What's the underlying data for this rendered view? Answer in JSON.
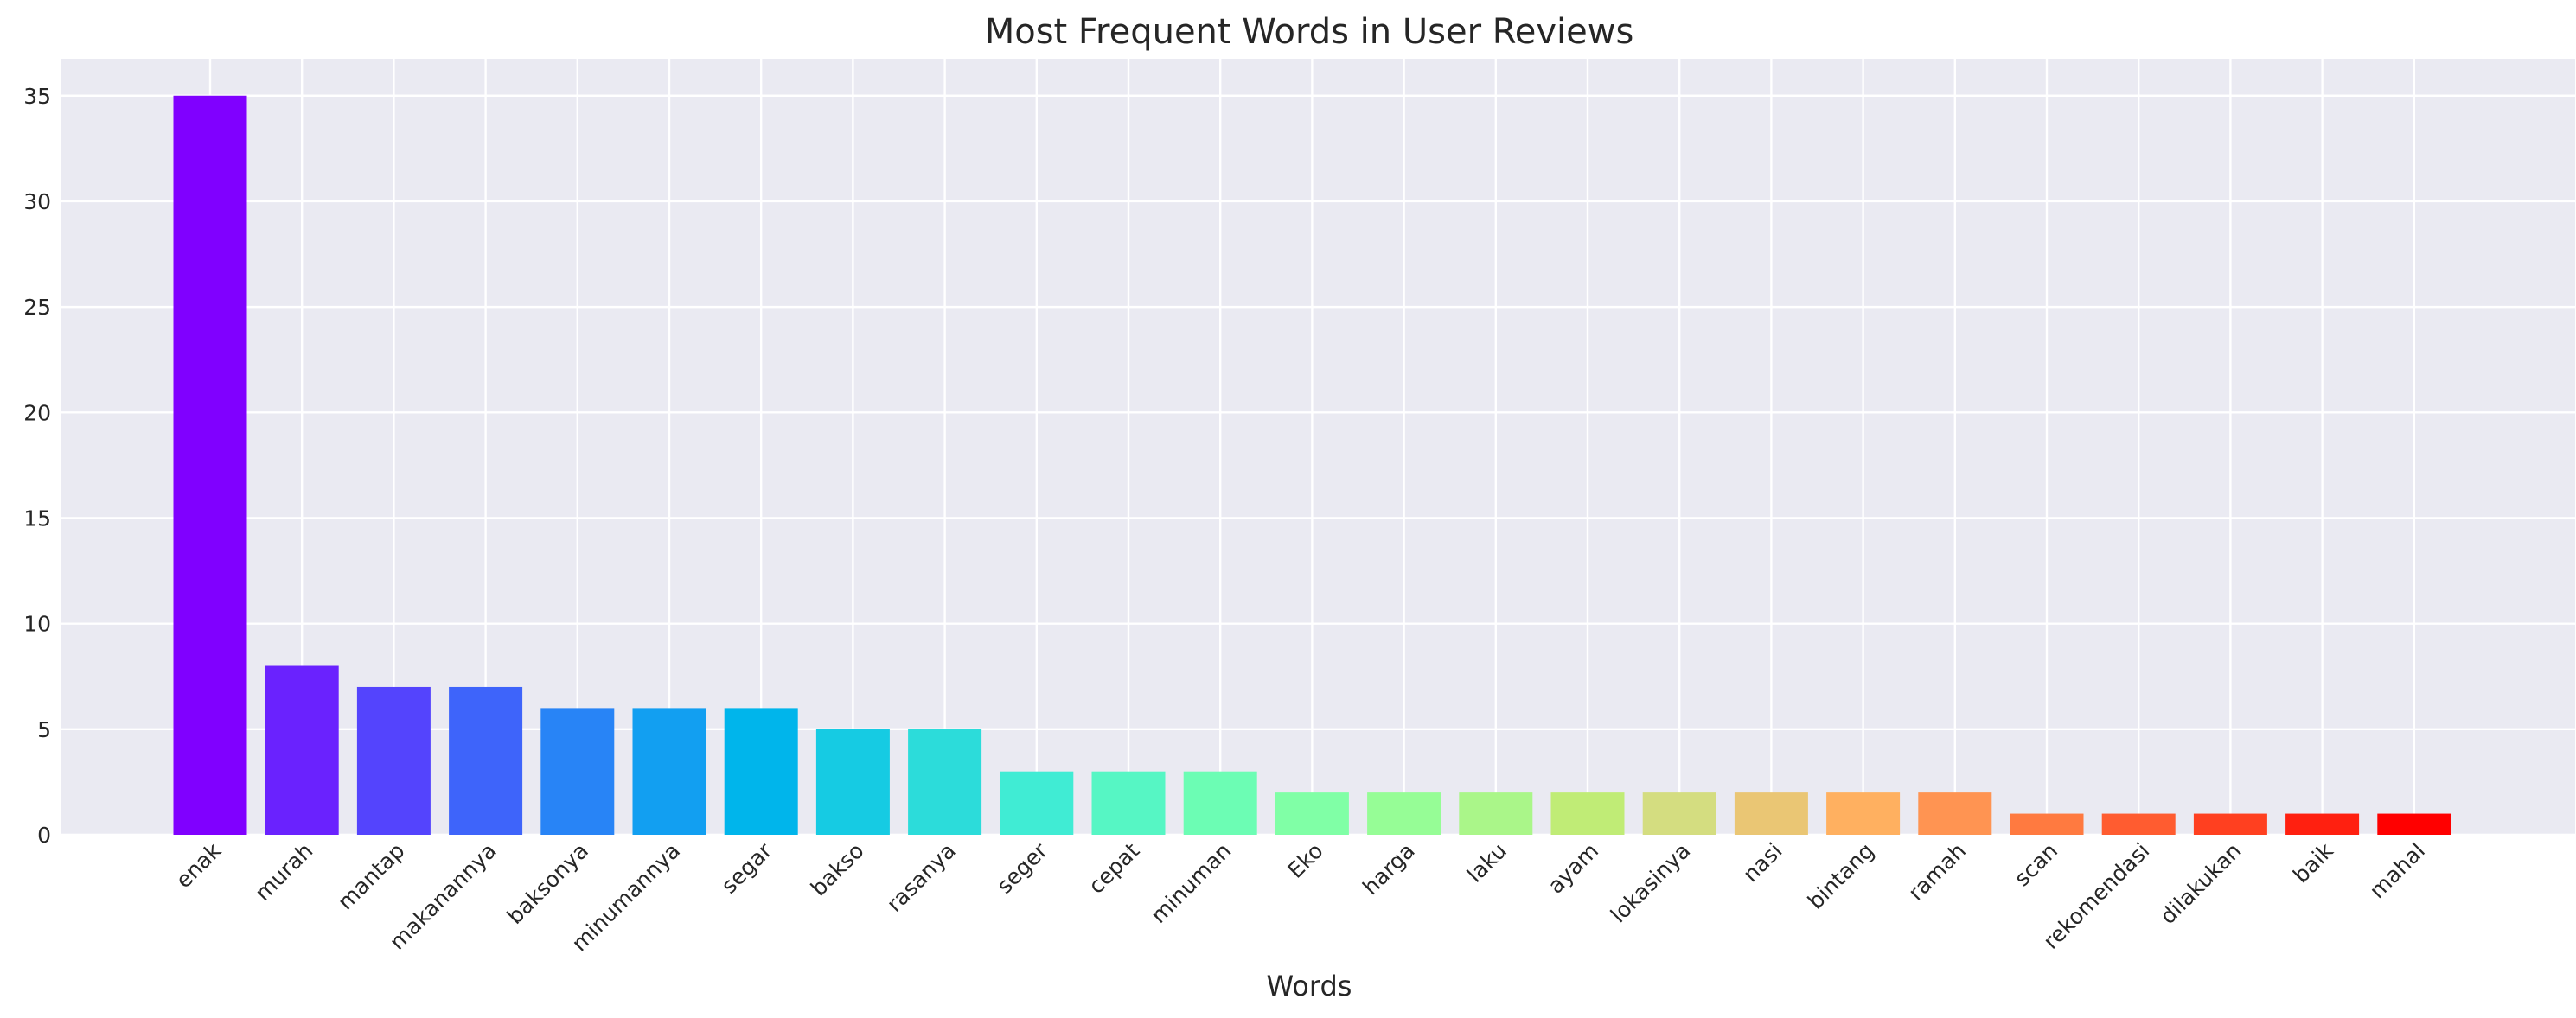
{
  "chart_data": {
    "type": "bar",
    "title": "Most Frequent Words in User Reviews",
    "xlabel": "Words",
    "ylabel": "",
    "ylim": [
      0,
      36.75
    ],
    "yticks": [
      0,
      5,
      10,
      15,
      20,
      25,
      30,
      35
    ],
    "grid": true,
    "categories": [
      "enak",
      "murah",
      "mantap",
      "makanannya",
      "baksonya",
      "minumannya",
      "segar",
      "bakso",
      "rasanya",
      "seger",
      "cepat",
      "minuman",
      "Eko",
      "harga",
      "laku",
      "ayam",
      "lokasinya",
      "nasi",
      "bintang",
      "ramah",
      "scan",
      "rekomendasi",
      "dilakukan",
      "baik",
      "mahal"
    ],
    "values": [
      35,
      8,
      7,
      7,
      6,
      6,
      6,
      5,
      5,
      3,
      3,
      3,
      2,
      2,
      2,
      2,
      2,
      2,
      2,
      2,
      1,
      1,
      1,
      1,
      1
    ],
    "colors": [
      "#8000ff",
      "#6a22fe",
      "#5444fd",
      "#3e64fa",
      "#2884f6",
      "#129ff1",
      "#00b5eb",
      "#16cbe3",
      "#2cdcda",
      "#40ecd4",
      "#56f6c4",
      "#6cfdb4",
      "#80ffa6",
      "#96fd96",
      "#aaf689",
      "#c0ec76",
      "#d4dd80",
      "#eac674",
      "#ffb060",
      "#ff9452",
      "#ff7a40",
      "#ff5c30",
      "#ff4020",
      "#ff2010",
      "#ff0000"
    ]
  }
}
